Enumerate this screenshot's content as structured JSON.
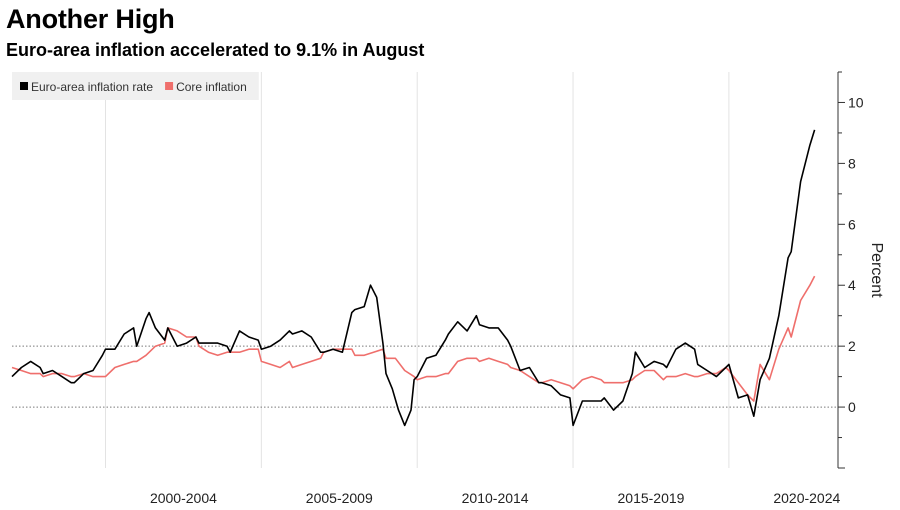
{
  "chart_data": {
    "type": "line",
    "title": "Another High",
    "subtitle": "Euro-area inflation accelerated to 9.1% in August",
    "ylabel": "Percent",
    "xlabel": "",
    "ylim": [
      -2,
      11
    ],
    "xlim": [
      1997.0,
      2023.5
    ],
    "yticks": [
      0,
      2,
      4,
      6,
      8,
      10
    ],
    "reference_lines": [
      0,
      2
    ],
    "x_period_labels": [
      {
        "label": "2000-2004",
        "center": 2002.5
      },
      {
        "label": "2005-2009",
        "center": 2007.5
      },
      {
        "label": "2010-2014",
        "center": 2012.5
      },
      {
        "label": "2015-2019",
        "center": 2017.5
      },
      {
        "label": "2020-2024",
        "center": 2022.5
      }
    ],
    "period_separators": [
      2000,
      2005,
      2010,
      2015,
      2020
    ],
    "legend_position": "top-left",
    "series": [
      {
        "name": "Euro-area inflation rate",
        "color": "#000000",
        "points": [
          [
            1997.0,
            1.0
          ],
          [
            1997.3,
            1.3
          ],
          [
            1997.6,
            1.5
          ],
          [
            1997.9,
            1.3
          ],
          [
            1998.0,
            1.1
          ],
          [
            1998.3,
            1.2
          ],
          [
            1998.6,
            1.0
          ],
          [
            1998.9,
            0.8
          ],
          [
            1999.0,
            0.8
          ],
          [
            1999.3,
            1.1
          ],
          [
            1999.6,
            1.2
          ],
          [
            1999.9,
            1.7
          ],
          [
            2000.0,
            1.9
          ],
          [
            2000.3,
            1.9
          ],
          [
            2000.6,
            2.4
          ],
          [
            2000.9,
            2.6
          ],
          [
            2001.0,
            2.0
          ],
          [
            2001.3,
            2.9
          ],
          [
            2001.4,
            3.1
          ],
          [
            2001.6,
            2.6
          ],
          [
            2001.9,
            2.2
          ],
          [
            2002.0,
            2.6
          ],
          [
            2002.3,
            2.0
          ],
          [
            2002.6,
            2.1
          ],
          [
            2002.9,
            2.3
          ],
          [
            2003.0,
            2.1
          ],
          [
            2003.3,
            2.1
          ],
          [
            2003.6,
            2.1
          ],
          [
            2003.9,
            2.0
          ],
          [
            2004.0,
            1.8
          ],
          [
            2004.3,
            2.5
          ],
          [
            2004.6,
            2.3
          ],
          [
            2004.9,
            2.2
          ],
          [
            2005.0,
            1.9
          ],
          [
            2005.3,
            2.0
          ],
          [
            2005.6,
            2.2
          ],
          [
            2005.9,
            2.5
          ],
          [
            2006.0,
            2.4
          ],
          [
            2006.3,
            2.5
          ],
          [
            2006.6,
            2.3
          ],
          [
            2006.9,
            1.8
          ],
          [
            2007.0,
            1.8
          ],
          [
            2007.3,
            1.9
          ],
          [
            2007.6,
            1.8
          ],
          [
            2007.9,
            3.1
          ],
          [
            2008.0,
            3.2
          ],
          [
            2008.3,
            3.3
          ],
          [
            2008.5,
            4.0
          ],
          [
            2008.7,
            3.6
          ],
          [
            2008.9,
            2.1
          ],
          [
            2009.0,
            1.1
          ],
          [
            2009.2,
            0.6
          ],
          [
            2009.4,
            -0.1
          ],
          [
            2009.6,
            -0.6
          ],
          [
            2009.8,
            -0.1
          ],
          [
            2009.9,
            0.9
          ],
          [
            2010.0,
            1.0
          ],
          [
            2010.3,
            1.6
          ],
          [
            2010.6,
            1.7
          ],
          [
            2010.9,
            2.2
          ],
          [
            2011.0,
            2.4
          ],
          [
            2011.3,
            2.8
          ],
          [
            2011.6,
            2.5
          ],
          [
            2011.9,
            3.0
          ],
          [
            2012.0,
            2.7
          ],
          [
            2012.3,
            2.6
          ],
          [
            2012.6,
            2.6
          ],
          [
            2012.9,
            2.2
          ],
          [
            2013.0,
            2.0
          ],
          [
            2013.3,
            1.2
          ],
          [
            2013.6,
            1.3
          ],
          [
            2013.9,
            0.8
          ],
          [
            2014.0,
            0.8
          ],
          [
            2014.3,
            0.7
          ],
          [
            2014.6,
            0.4
          ],
          [
            2014.9,
            0.3
          ],
          [
            2015.0,
            -0.6
          ],
          [
            2015.3,
            0.2
          ],
          [
            2015.6,
            0.2
          ],
          [
            2015.9,
            0.2
          ],
          [
            2016.0,
            0.3
          ],
          [
            2016.3,
            -0.1
          ],
          [
            2016.6,
            0.2
          ],
          [
            2016.9,
            1.1
          ],
          [
            2017.0,
            1.8
          ],
          [
            2017.3,
            1.3
          ],
          [
            2017.6,
            1.5
          ],
          [
            2017.9,
            1.4
          ],
          [
            2018.0,
            1.3
          ],
          [
            2018.3,
            1.9
          ],
          [
            2018.6,
            2.1
          ],
          [
            2018.9,
            1.9
          ],
          [
            2019.0,
            1.4
          ],
          [
            2019.3,
            1.2
          ],
          [
            2019.6,
            1.0
          ],
          [
            2019.9,
            1.3
          ],
          [
            2020.0,
            1.4
          ],
          [
            2020.3,
            0.3
          ],
          [
            2020.6,
            0.4
          ],
          [
            2020.8,
            -0.3
          ],
          [
            2021.0,
            0.9
          ],
          [
            2021.3,
            1.6
          ],
          [
            2021.6,
            3.0
          ],
          [
            2021.9,
            4.9
          ],
          [
            2022.0,
            5.1
          ],
          [
            2022.3,
            7.4
          ],
          [
            2022.6,
            8.6
          ],
          [
            2022.75,
            9.1
          ]
        ]
      },
      {
        "name": "Core inflation",
        "color": "#ef6f6c",
        "points": [
          [
            1997.0,
            1.3
          ],
          [
            1997.3,
            1.2
          ],
          [
            1997.6,
            1.1
          ],
          [
            1997.9,
            1.1
          ],
          [
            1998.0,
            1.0
          ],
          [
            1998.3,
            1.1
          ],
          [
            1998.6,
            1.1
          ],
          [
            1998.9,
            1.0
          ],
          [
            1999.0,
            1.0
          ],
          [
            1999.3,
            1.1
          ],
          [
            1999.6,
            1.0
          ],
          [
            1999.9,
            1.0
          ],
          [
            2000.0,
            1.0
          ],
          [
            2000.3,
            1.3
          ],
          [
            2000.6,
            1.4
          ],
          [
            2000.9,
            1.5
          ],
          [
            2001.0,
            1.5
          ],
          [
            2001.3,
            1.7
          ],
          [
            2001.6,
            2.0
          ],
          [
            2001.9,
            2.1
          ],
          [
            2002.0,
            2.6
          ],
          [
            2002.3,
            2.5
          ],
          [
            2002.6,
            2.3
          ],
          [
            2002.9,
            2.3
          ],
          [
            2003.0,
            2.0
          ],
          [
            2003.3,
            1.8
          ],
          [
            2003.6,
            1.7
          ],
          [
            2003.9,
            1.8
          ],
          [
            2004.0,
            1.8
          ],
          [
            2004.3,
            1.8
          ],
          [
            2004.6,
            1.9
          ],
          [
            2004.9,
            1.9
          ],
          [
            2005.0,
            1.5
          ],
          [
            2005.3,
            1.4
          ],
          [
            2005.6,
            1.3
          ],
          [
            2005.9,
            1.5
          ],
          [
            2006.0,
            1.3
          ],
          [
            2006.3,
            1.4
          ],
          [
            2006.6,
            1.5
          ],
          [
            2006.9,
            1.6
          ],
          [
            2007.0,
            1.8
          ],
          [
            2007.3,
            1.9
          ],
          [
            2007.6,
            1.9
          ],
          [
            2007.9,
            1.9
          ],
          [
            2008.0,
            1.7
          ],
          [
            2008.3,
            1.7
          ],
          [
            2008.6,
            1.8
          ],
          [
            2008.9,
            1.9
          ],
          [
            2009.0,
            1.6
          ],
          [
            2009.3,
            1.6
          ],
          [
            2009.6,
            1.2
          ],
          [
            2009.9,
            1.0
          ],
          [
            2010.0,
            0.9
          ],
          [
            2010.3,
            1.0
          ],
          [
            2010.6,
            1.0
          ],
          [
            2010.9,
            1.1
          ],
          [
            2011.0,
            1.1
          ],
          [
            2011.3,
            1.5
          ],
          [
            2011.6,
            1.6
          ],
          [
            2011.9,
            1.6
          ],
          [
            2012.0,
            1.5
          ],
          [
            2012.3,
            1.6
          ],
          [
            2012.6,
            1.5
          ],
          [
            2012.9,
            1.4
          ],
          [
            2013.0,
            1.3
          ],
          [
            2013.3,
            1.2
          ],
          [
            2013.6,
            1.0
          ],
          [
            2013.9,
            0.8
          ],
          [
            2014.0,
            0.8
          ],
          [
            2014.3,
            0.9
          ],
          [
            2014.6,
            0.8
          ],
          [
            2014.9,
            0.7
          ],
          [
            2015.0,
            0.6
          ],
          [
            2015.3,
            0.9
          ],
          [
            2015.6,
            1.0
          ],
          [
            2015.9,
            0.9
          ],
          [
            2016.0,
            0.8
          ],
          [
            2016.3,
            0.8
          ],
          [
            2016.6,
            0.8
          ],
          [
            2016.9,
            0.9
          ],
          [
            2017.0,
            1.0
          ],
          [
            2017.3,
            1.2
          ],
          [
            2017.6,
            1.2
          ],
          [
            2017.9,
            0.9
          ],
          [
            2018.0,
            1.0
          ],
          [
            2018.3,
            1.0
          ],
          [
            2018.6,
            1.1
          ],
          [
            2018.9,
            1.0
          ],
          [
            2019.0,
            1.0
          ],
          [
            2019.3,
            1.1
          ],
          [
            2019.6,
            1.1
          ],
          [
            2019.9,
            1.3
          ],
          [
            2020.0,
            1.2
          ],
          [
            2020.3,
            0.8
          ],
          [
            2020.6,
            0.4
          ],
          [
            2020.8,
            0.2
          ],
          [
            2021.0,
            1.4
          ],
          [
            2021.3,
            0.9
          ],
          [
            2021.6,
            1.9
          ],
          [
            2021.9,
            2.6
          ],
          [
            2022.0,
            2.3
          ],
          [
            2022.3,
            3.5
          ],
          [
            2022.6,
            4.0
          ],
          [
            2022.75,
            4.3
          ]
        ]
      }
    ]
  }
}
